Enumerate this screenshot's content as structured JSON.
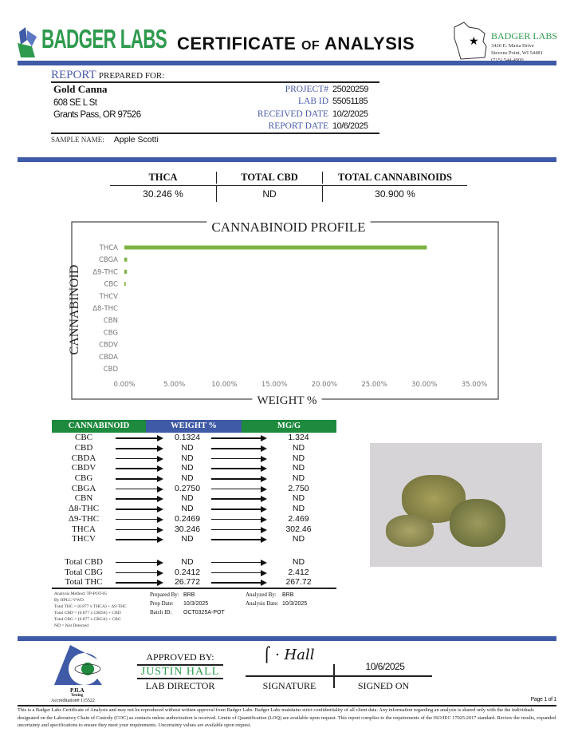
{
  "header": {
    "brand": "BADGER LABS",
    "title_a": "CERTIFICATE",
    "title_of": "of",
    "title_b": "ANALYSIS",
    "lab_name": "BADGER LABS",
    "lab_address1": "3426 E. Maria Drive",
    "lab_address2": "Stevens Point, WI 54481",
    "lab_phone": "(715) 544-4900"
  },
  "client": {
    "report_label": "REPORT",
    "prepared_for": "PREPARED FOR:",
    "name": "Gold Canna",
    "address1": "608 SE L St",
    "address2": "Grants Pass, OR 97526",
    "sample_name_label": "SAMPLE NAME:",
    "sample_name": "Apple Scotti"
  },
  "meta": [
    {
      "label": "PROJECT#",
      "value": "25020259"
    },
    {
      "label": "LAB ID",
      "value": "55051185"
    },
    {
      "label": "RECEIVED DATE",
      "value": "10/2/2025"
    },
    {
      "label": "REPORT DATE",
      "value": "10/6/2025"
    }
  ],
  "summary": {
    "headers": [
      "THCA",
      "TOTAL CBD",
      "TOTAL CANNABINOIDS"
    ],
    "values": [
      "30.246 %",
      "ND",
      "30.900 %"
    ]
  },
  "chart_data": {
    "type": "bar",
    "orientation": "horizontal",
    "title": "CANNABINOID PROFILE",
    "xlabel": "WEIGHT %",
    "ylabel": "CANNABINOID",
    "categories": [
      "THCA",
      "CBGA",
      "Δ9-THC",
      "CBC",
      "THCV",
      "Δ8-THC",
      "CBN",
      "CBG",
      "CBDV",
      "CBDA",
      "CBD"
    ],
    "values": [
      30.246,
      0.275,
      0.2469,
      0.1324,
      0,
      0,
      0,
      0,
      0,
      0,
      0
    ],
    "xlim": [
      0,
      35
    ],
    "xticks": [
      "0.00%",
      "5.00%",
      "10.00%",
      "15.00%",
      "20.00%",
      "25.00%",
      "30.00%",
      "35.00%"
    ],
    "grid": false,
    "color": "#7cb342"
  },
  "results": {
    "headers": [
      "CANNABINOID",
      "WEIGHT %",
      "MG/G"
    ],
    "rows": [
      [
        "CBC",
        "0.1324",
        "1.324"
      ],
      [
        "CBD",
        "ND",
        "ND"
      ],
      [
        "CBDA",
        "ND",
        "ND"
      ],
      [
        "CBDV",
        "ND",
        "ND"
      ],
      [
        "CBG",
        "ND",
        "ND"
      ],
      [
        "CBGA",
        "0.2750",
        "2.750"
      ],
      [
        "CBN",
        "ND",
        "ND"
      ],
      [
        "Δ8-THC",
        "ND",
        "ND"
      ],
      [
        "Δ9-THC",
        "0.2469",
        "2.469"
      ],
      [
        "THCA",
        "30.246",
        "302.46"
      ],
      [
        "THCV",
        "ND",
        "ND"
      ]
    ],
    "totals": [
      [
        "Total CBD",
        "ND",
        "ND"
      ],
      [
        "Total CBG",
        "0.2412",
        "2.412"
      ],
      [
        "Total THC",
        "26.772",
        "267.72"
      ]
    ]
  },
  "notes": [
    "Analysis Method: TP-POT-05",
    "By HPLC-VWD",
    "Total THC = (0.877 x THCA) + Δ9-THC",
    "Total CBD = (0.877 x CBDA) + CBD",
    "Total CBG = (0.877 x CBGA) + CBG",
    "ND = Not Detected"
  ],
  "prep": {
    "prepared_by_label": "Prepared By:",
    "prepared_by": "BRB",
    "prep_date_label": "Prep Date:",
    "prep_date": "10/3/2025",
    "batch_label": "Batch ID:",
    "batch": "OCT0325A-POT",
    "analyzed_by_label": "Analyzed By:",
    "analyzed_by": "BRB",
    "analysis_date_label": "Analysis Date:",
    "analysis_date": "10/3/2025"
  },
  "approval": {
    "approved_by": "APPROVED BY:",
    "name": "JUSTIN HALL",
    "role": "LAB DIRECTOR",
    "signature_label": "SIGNATURE",
    "signed_on_label": "SIGNED ON",
    "signed_on": "10/6/2025",
    "signature": "J. Hall"
  },
  "accreditation": {
    "org": "PJLA",
    "type": "Testing",
    "number": "Accreditation# 115522"
  },
  "footer": {
    "page": "Page 1 of 1",
    "disclaimer": "This is a Badger Labs Certificate of Analysis and may not be reproduced without written approval from Badger Labs. Badger Labs maintains strict confidentiality of all client data. Any information regarding an analysis is shared only with the the individuals designated on the Laboratory Chain of Custody (COC) as contacts unless authorization is received. Limits of Quantification (LOQ) are available upon request. This report complies to the requirements of the ISO/IEC 17025:2017 standard. Review the results, expanded uncertainty and specifications to ensure they meet your requirements. Uncertainty values are available upon request."
  }
}
